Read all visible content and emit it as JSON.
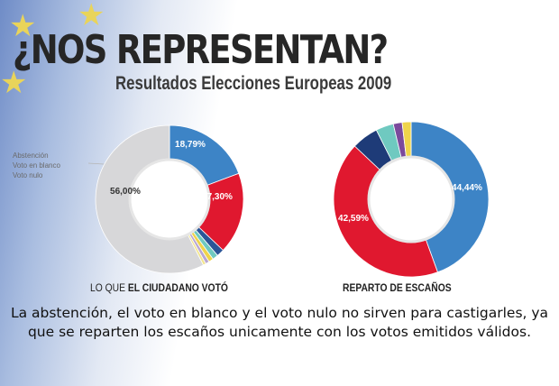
{
  "header": {
    "title": "¿NOS REPRESENTAN?",
    "subtitle": "Resultados Elecciones Europeas 2009"
  },
  "legend_items": [
    "Abstención",
    "Voto en blanco",
    "Voto nulo"
  ],
  "caption": "La abstención, el voto en blanco y el voto nulo no sirven para castigarles, ya que se reparten los escaños unicamente con los votos emitidos válidos.",
  "colors": {
    "blue": "#3d84c6",
    "red": "#e0182f",
    "gray": "#d7d7d9",
    "teal": "#6fc9c0",
    "navy": "#1e3b78",
    "yellow": "#efd44b",
    "purple": "#7b4a9c"
  },
  "chart_data": [
    {
      "type": "pie",
      "title_prefix": "LO QUE ",
      "title_bold": "EL CIUDADANO VOTÓ",
      "slices": [
        {
          "value": 18.79,
          "label": "18,79%",
          "color": "#3d84c6"
        },
        {
          "value": 17.3,
          "label": "17,30%",
          "color": "#e0182f"
        },
        {
          "value": 1.6,
          "label": "",
          "color": "#2b5597"
        },
        {
          "value": 1.2,
          "label": "",
          "color": "#6fc9c0"
        },
        {
          "value": 1.0,
          "label": "",
          "color": "#efd44b"
        },
        {
          "value": 0.8,
          "label": "",
          "color": "#b9a7d2"
        },
        {
          "value": 0.6,
          "label": "",
          "color": "#f2e58f"
        },
        {
          "value": 56.0,
          "label": "56,00%",
          "color": "#d7d7d9"
        }
      ]
    },
    {
      "type": "pie",
      "title": "REPARTO DE ESCAÑOS",
      "slices": [
        {
          "value": 44.44,
          "label": "44,44%",
          "color": "#3d84c6"
        },
        {
          "value": 42.59,
          "label": "42,59%",
          "color": "#e0182f"
        },
        {
          "value": 5.56,
          "label": "",
          "color": "#1e3b78"
        },
        {
          "value": 3.7,
          "label": "",
          "color": "#6fc9c0"
        },
        {
          "value": 1.85,
          "label": "",
          "color": "#7b4a9c"
        },
        {
          "value": 1.86,
          "label": "",
          "color": "#efd44b"
        }
      ]
    }
  ]
}
